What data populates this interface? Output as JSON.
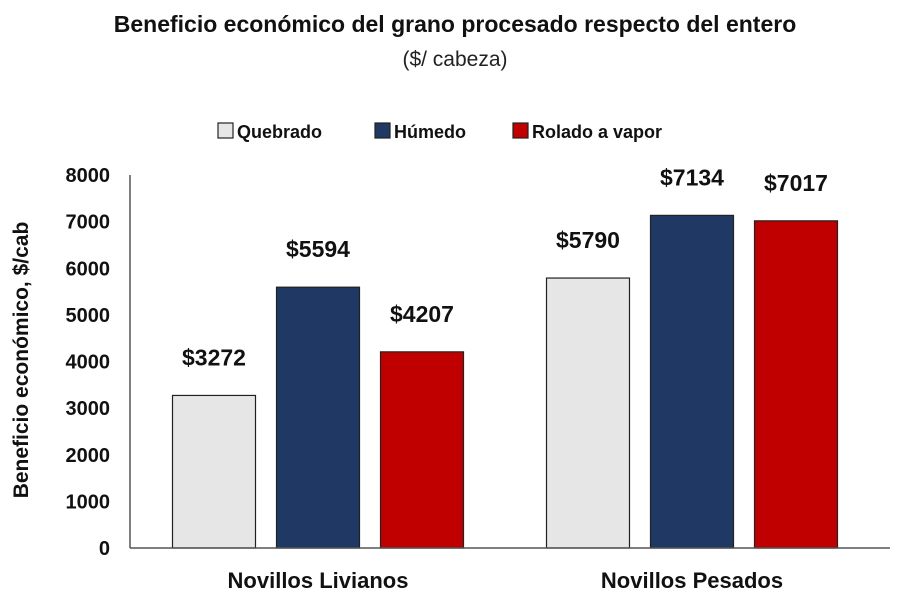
{
  "chart_data": {
    "type": "bar",
    "title": "Beneficio económico del grano procesado respecto del entero",
    "subtitle": "($/ cabeza)",
    "ylabel": "Beneficio económico, $/cab",
    "xlabel": "",
    "ylim": [
      0,
      8000
    ],
    "yticks": [
      0,
      1000,
      2000,
      3000,
      4000,
      5000,
      6000,
      7000,
      8000
    ],
    "categories": [
      "Novillos Livianos",
      "Novillos Pesados"
    ],
    "series": [
      {
        "name": "Quebrado",
        "color": "#e6e6e6",
        "values": [
          3272,
          5790
        ],
        "labels": [
          "$3272",
          "$5790"
        ]
      },
      {
        "name": "Húmedo",
        "color": "#1f3864",
        "values": [
          5594,
          7134
        ],
        "labels": [
          "$5594",
          "$7134"
        ]
      },
      {
        "name": "Rolado a vapor",
        "color": "#c00000",
        "values": [
          4207,
          7017
        ],
        "labels": [
          "$4207",
          "$7017"
        ]
      }
    ],
    "legend_position": "top",
    "grid": false
  }
}
